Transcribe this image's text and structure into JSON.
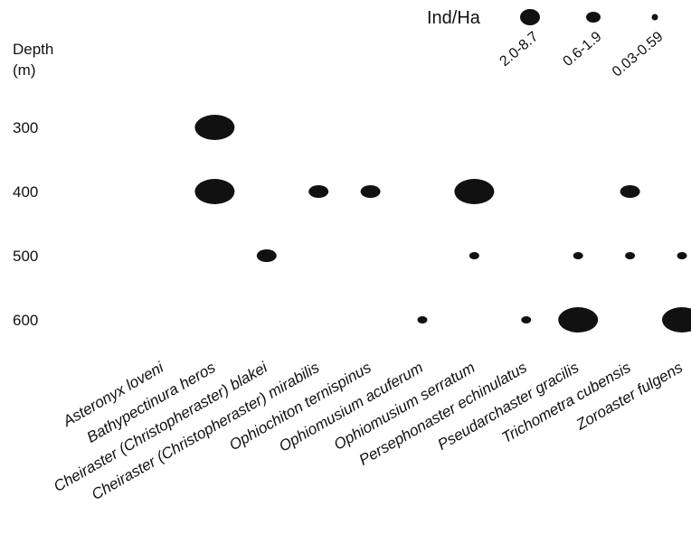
{
  "chart_data": {
    "type": "scatter",
    "title": "",
    "ylabel": "Depth\n(m)",
    "xlabel": "",
    "y_ticks": [
      300,
      400,
      500,
      600
    ],
    "ylim": [
      600,
      300
    ],
    "species": [
      "Asteronyx loveni",
      "Bathypectinura heros",
      "Cheiraster (Christopheraster) blakei",
      "Cheiraster (Christopheraster) mirabilis",
      "Ophiochiton ternispinus",
      "Ophiomusium acuferum",
      "Ophiomusium serratum",
      "Persephonaster echinulatus",
      "Pseudarchaster gracilis",
      "Trichometra cubensis",
      "Zoroaster fulgens"
    ],
    "legend": {
      "title": "Ind/Ha",
      "classes": [
        {
          "label": "2.0-8.7",
          "size": "large"
        },
        {
          "label": "0.6-1.9",
          "size": "medium"
        },
        {
          "label": "0.03-0.59",
          "size": "small"
        }
      ]
    },
    "points": [
      {
        "species": "Bathypectinura heros",
        "depth": 300,
        "density_class": "2.0-8.7"
      },
      {
        "species": "Bathypectinura heros",
        "depth": 400,
        "density_class": "2.0-8.7"
      },
      {
        "species": "Cheiraster (Christopheraster) blakei",
        "depth": 500,
        "density_class": "0.6-1.9"
      },
      {
        "species": "Cheiraster (Christopheraster) mirabilis",
        "depth": 400,
        "density_class": "0.6-1.9"
      },
      {
        "species": "Ophiochiton ternispinus",
        "depth": 400,
        "density_class": "0.6-1.9"
      },
      {
        "species": "Ophiomusium acuferum",
        "depth": 600,
        "density_class": "0.03-0.59"
      },
      {
        "species": "Ophiomusium serratum",
        "depth": 400,
        "density_class": "2.0-8.7"
      },
      {
        "species": "Ophiomusium serratum",
        "depth": 500,
        "density_class": "0.03-0.59"
      },
      {
        "species": "Persephonaster echinulatus",
        "depth": 600,
        "density_class": "0.03-0.59"
      },
      {
        "species": "Pseudarchaster gracilis",
        "depth": 500,
        "density_class": "0.03-0.59"
      },
      {
        "species": "Pseudarchaster gracilis",
        "depth": 600,
        "density_class": "2.0-8.7"
      },
      {
        "species": "Trichometra cubensis",
        "depth": 400,
        "density_class": "0.6-1.9"
      },
      {
        "species": "Trichometra cubensis",
        "depth": 500,
        "density_class": "0.03-0.59"
      },
      {
        "species": "Zoroaster fulgens",
        "depth": 600,
        "density_class": "2.0-8.7"
      },
      {
        "species": "Zoroaster fulgens",
        "depth": 500,
        "density_class": "0.03-0.59"
      }
    ]
  }
}
